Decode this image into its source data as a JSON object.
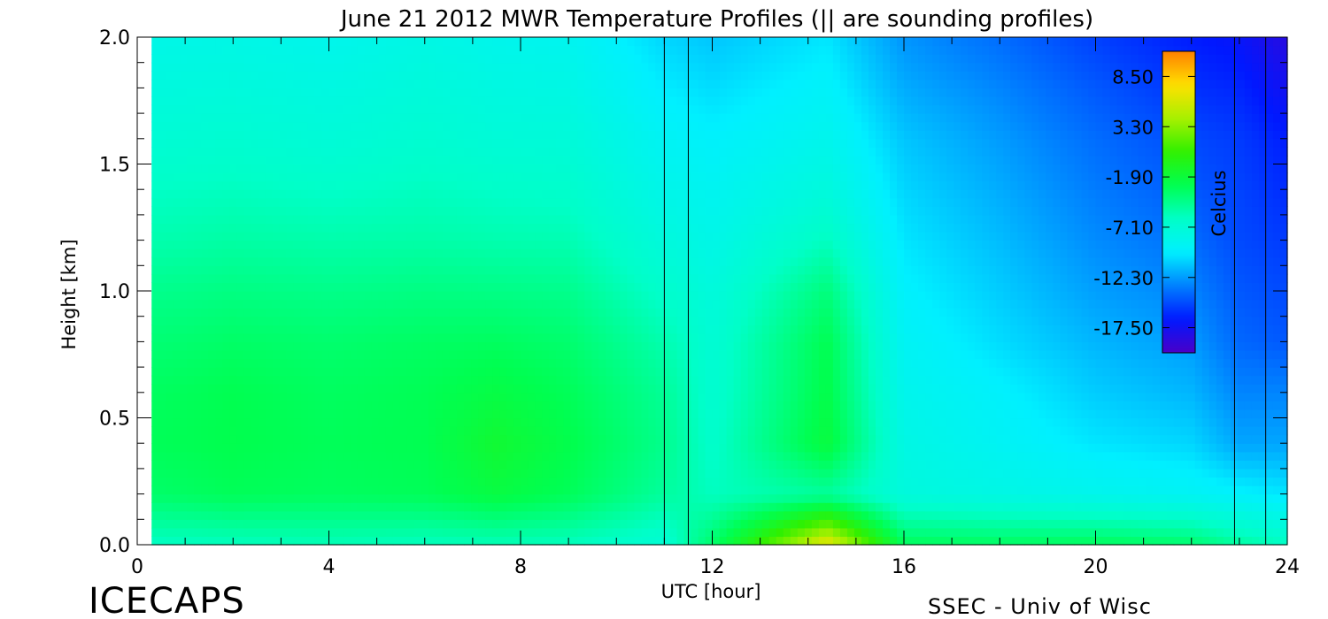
{
  "chart_data": {
    "type": "heatmap",
    "title": "June 21 2012 MWR Temperature Profiles (||  are sounding profiles)",
    "xlabel": "UTC [hour]",
    "ylabel": "Height [km]",
    "xlim": [
      0,
      24
    ],
    "ylim": [
      0,
      2.0
    ],
    "x_ticks": [
      0,
      4,
      8,
      12,
      16,
      20,
      24
    ],
    "x_tick_labels": [
      "0",
      "4",
      "8",
      "12",
      "16",
      "20",
      "24"
    ],
    "y_ticks": [
      0.0,
      0.5,
      1.0,
      1.5,
      2.0
    ],
    "y_tick_labels": [
      "0.0",
      "0.5",
      "1.0",
      "1.5",
      "2.0"
    ],
    "data_x_range": [
      0.3,
      24.0
    ],
    "data_y_range": [
      0.0,
      2.0
    ],
    "colorbar": {
      "label": "Celcius",
      "min": -20.1,
      "max": 11.1,
      "tick_values": [
        8.5,
        3.3,
        -1.9,
        -7.1,
        -12.3,
        -17.5
      ],
      "tick_labels": [
        "8.50",
        "3.30",
        "-1.90",
        "-7.10",
        "-12.30",
        "-17.50"
      ],
      "colors": [
        "#4a00c8",
        "#0018ff",
        "#0080ff",
        "#00f0ff",
        "#00ffc8",
        "#00ff50",
        "#30f000",
        "#a8f000",
        "#ffe000",
        "#ff8000"
      ]
    },
    "sounding_profiles_utc": [
      11.0,
      11.5,
      22.9,
      23.55
    ],
    "temperature_grid": {
      "heights_km": [
        0.0,
        0.2,
        0.4,
        0.6,
        0.8,
        1.0,
        1.2,
        1.4,
        1.6,
        1.8,
        2.0
      ],
      "times_utc": [
        0.3,
        2,
        4,
        6,
        7.5,
        9,
        11,
        12,
        14.4,
        16,
        18,
        20,
        22,
        23,
        24
      ],
      "values_c": [
        [
          -6.2,
          -6.0,
          -5.8,
          -6.0,
          -5.8,
          -6.0,
          -7.0,
          -3.5,
          7.0,
          -3.0,
          -3.2,
          -3.0,
          -3.5,
          -5.0,
          -6.0
        ],
        [
          -3.5,
          -3.0,
          -3.2,
          -3.0,
          -2.2,
          -3.0,
          -5.0,
          -6.0,
          -5.0,
          -7.5,
          -8.0,
          -8.5,
          -9.0,
          -9.5,
          -10.0
        ],
        [
          -3.0,
          -2.7,
          -3.0,
          -2.8,
          -1.5,
          -2.6,
          -4.5,
          -6.5,
          -2.0,
          -8.0,
          -9.0,
          -10.0,
          -10.5,
          -12.0,
          -12.0
        ],
        [
          -3.2,
          -2.8,
          -3.2,
          -2.9,
          -2.3,
          -3.0,
          -4.8,
          -6.8,
          -2.5,
          -8.5,
          -9.5,
          -10.8,
          -11.5,
          -13.0,
          -13.0
        ],
        [
          -3.8,
          -3.4,
          -3.6,
          -3.3,
          -3.2,
          -3.6,
          -5.5,
          -7.0,
          -2.8,
          -9.0,
          -10.3,
          -11.5,
          -12.3,
          -14.0,
          -14.5
        ],
        [
          -4.5,
          -4.2,
          -4.4,
          -4.2,
          -4.3,
          -4.5,
          -6.5,
          -7.5,
          -4.0,
          -9.5,
          -10.8,
          -12.2,
          -13.0,
          -14.5,
          -15.0
        ],
        [
          -5.5,
          -5.2,
          -5.4,
          -5.3,
          -5.5,
          -5.6,
          -7.5,
          -8.2,
          -6.0,
          -10.0,
          -11.3,
          -12.8,
          -13.8,
          -15.0,
          -15.5
        ],
        [
          -6.2,
          -6.0,
          -6.3,
          -6.0,
          -6.3,
          -6.5,
          -8.3,
          -8.8,
          -7.5,
          -10.5,
          -11.8,
          -13.3,
          -14.5,
          -15.2,
          -16.0
        ],
        [
          -7.0,
          -6.8,
          -7.2,
          -6.8,
          -7.2,
          -7.3,
          -9.0,
          -9.5,
          -8.5,
          -11.0,
          -12.3,
          -13.8,
          -15.0,
          -15.5,
          -16.5
        ],
        [
          -7.6,
          -7.5,
          -7.8,
          -7.4,
          -7.8,
          -8.0,
          -9.8,
          -10.3,
          -9.3,
          -11.8,
          -13.0,
          -14.5,
          -15.8,
          -16.2,
          -17.5
        ],
        [
          -8.2,
          -8.1,
          -8.5,
          -8.0,
          -8.5,
          -8.7,
          -10.5,
          -11.0,
          -10.0,
          -12.5,
          -13.8,
          -15.3,
          -16.5,
          -17.0,
          -18.5
        ]
      ]
    }
  },
  "footer": {
    "brand": "ICECAPS",
    "credit": "SSEC - Univ of Wisc"
  }
}
